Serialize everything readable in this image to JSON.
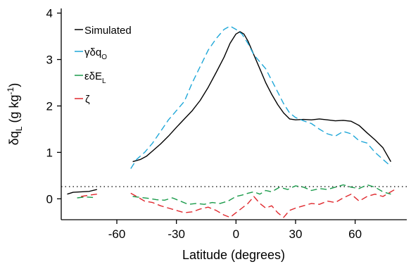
{
  "chart_data": {
    "type": "line",
    "xlabel": "Latitude (degrees)",
    "ylabel_parts": {
      "main": "δq",
      "sub": "L",
      "units_open": " (g kg",
      "units_sup": "-1",
      "units_close": ")"
    },
    "xlim": [
      -88,
      86
    ],
    "ylim": [
      -0.45,
      4.1
    ],
    "x_ticks": [
      -60,
      -30,
      0,
      30,
      60
    ],
    "x_tick_labels": [
      "-60",
      "-30",
      "0",
      "30",
      "60"
    ],
    "y_ticks": [
      0,
      1,
      2,
      3,
      4
    ],
    "y_tick_labels": [
      "0",
      "1",
      "2",
      "3",
      "4"
    ],
    "zero_reference_line": true,
    "grid": false,
    "legend_position": "top-left",
    "legend": [
      {
        "label_main": "Simulated",
        "label_sub": ""
      },
      {
        "label_main": "γδq",
        "label_sub": "O"
      },
      {
        "label_main": "εδE",
        "label_sub": "L"
      },
      {
        "label_main": "ζ",
        "label_sub": ""
      }
    ],
    "series": [
      {
        "name": "Simulated",
        "color": "#000000",
        "dashed": false,
        "segments": [
          [
            [
              -85,
              0.1
            ],
            [
              -82,
              0.14
            ],
            [
              -78,
              0.15
            ],
            [
              -74,
              0.16
            ],
            [
              -70,
              0.2
            ]
          ],
          [
            [
              -52,
              0.8
            ],
            [
              -48,
              0.85
            ],
            [
              -45,
              0.92
            ],
            [
              -42,
              1.03
            ],
            [
              -38,
              1.18
            ],
            [
              -34,
              1.35
            ],
            [
              -30,
              1.54
            ],
            [
              -26,
              1.72
            ],
            [
              -22,
              1.9
            ],
            [
              -18,
              2.12
            ],
            [
              -14,
              2.4
            ],
            [
              -10,
              2.72
            ],
            [
              -6,
              3.05
            ],
            [
              -3,
              3.35
            ],
            [
              0,
              3.55
            ],
            [
              2,
              3.6
            ],
            [
              4,
              3.55
            ],
            [
              6,
              3.4
            ],
            [
              9,
              3.1
            ],
            [
              12,
              2.8
            ],
            [
              15,
              2.5
            ],
            [
              18,
              2.25
            ],
            [
              21,
              2.03
            ],
            [
              24,
              1.85
            ],
            [
              27,
              1.72
            ],
            [
              30,
              1.7
            ],
            [
              34,
              1.71
            ],
            [
              38,
              1.7
            ],
            [
              42,
              1.72
            ],
            [
              46,
              1.7
            ],
            [
              50,
              1.68
            ],
            [
              54,
              1.69
            ],
            [
              58,
              1.67
            ],
            [
              62,
              1.58
            ],
            [
              66,
              1.42
            ],
            [
              70,
              1.27
            ],
            [
              74,
              1.1
            ],
            [
              78,
              0.8
            ]
          ]
        ]
      },
      {
        "name": "γδq_O",
        "color": "#1ea7d8",
        "dashed": true,
        "segments": [
          [
            [
              -53,
              0.65
            ],
            [
              -50,
              0.85
            ],
            [
              -46,
              1.0
            ],
            [
              -42,
              1.2
            ],
            [
              -38,
              1.45
            ],
            [
              -34,
              1.7
            ],
            [
              -30,
              1.9
            ],
            [
              -26,
              2.1
            ],
            [
              -22,
              2.5
            ],
            [
              -18,
              2.85
            ],
            [
              -14,
              3.2
            ],
            [
              -10,
              3.45
            ],
            [
              -6,
              3.65
            ],
            [
              -3,
              3.72
            ],
            [
              0,
              3.65
            ],
            [
              3,
              3.55
            ],
            [
              6,
              3.35
            ],
            [
              9,
              3.1
            ],
            [
              12,
              2.95
            ],
            [
              15,
              2.8
            ],
            [
              18,
              2.55
            ],
            [
              21,
              2.3
            ],
            [
              24,
              2.05
            ],
            [
              27,
              1.85
            ],
            [
              30,
              1.75
            ],
            [
              34,
              1.68
            ],
            [
              38,
              1.62
            ],
            [
              42,
              1.5
            ],
            [
              46,
              1.4
            ],
            [
              50,
              1.35
            ],
            [
              54,
              1.45
            ],
            [
              58,
              1.4
            ],
            [
              62,
              1.25
            ],
            [
              66,
              1.2
            ],
            [
              70,
              1.0
            ],
            [
              74,
              0.85
            ],
            [
              78,
              0.7
            ]
          ]
        ]
      },
      {
        "name": "εδE_L",
        "color": "#1a9b4a",
        "dashed": true,
        "segments": [
          [
            [
              -80,
              0.02
            ],
            [
              -76,
              0.04
            ],
            [
              -72,
              0.03
            ]
          ],
          [
            [
              -52,
              0.05
            ],
            [
              -48,
              0.03
            ],
            [
              -44,
              0.01
            ],
            [
              -40,
              -0.02
            ],
            [
              -36,
              -0.03
            ],
            [
              -32,
              0.02
            ],
            [
              -28,
              -0.05
            ],
            [
              -24,
              -0.12
            ],
            [
              -20,
              -0.1
            ],
            [
              -16,
              -0.12
            ],
            [
              -12,
              -0.08
            ],
            [
              -8,
              -0.1
            ],
            [
              -4,
              -0.05
            ],
            [
              0,
              0.05
            ],
            [
              3,
              0.08
            ],
            [
              6,
              0.12
            ],
            [
              9,
              0.15
            ],
            [
              12,
              0.1
            ],
            [
              15,
              0.18
            ],
            [
              18,
              0.15
            ],
            [
              22,
              0.25
            ],
            [
              26,
              0.2
            ],
            [
              30,
              0.28
            ],
            [
              34,
              0.25
            ],
            [
              38,
              0.18
            ],
            [
              42,
              0.22
            ],
            [
              46,
              0.2
            ],
            [
              50,
              0.25
            ],
            [
              54,
              0.3
            ],
            [
              58,
              0.25
            ],
            [
              62,
              0.22
            ],
            [
              66,
              0.3
            ],
            [
              70,
              0.25
            ],
            [
              74,
              0.15
            ],
            [
              78,
              0.1
            ]
          ]
        ]
      },
      {
        "name": "ζ",
        "color": "#e0292e",
        "dashed": true,
        "segments": [
          [
            [
              -78,
              0.05
            ],
            [
              -74,
              0.08
            ],
            [
              -70,
              0.1
            ]
          ],
          [
            [
              -53,
              0.12
            ],
            [
              -50,
              0.05
            ],
            [
              -46,
              -0.05
            ],
            [
              -42,
              -0.08
            ],
            [
              -38,
              -0.15
            ],
            [
              -34,
              -0.2
            ],
            [
              -30,
              -0.25
            ],
            [
              -26,
              -0.3
            ],
            [
              -22,
              -0.28
            ],
            [
              -18,
              -0.22
            ],
            [
              -14,
              -0.18
            ],
            [
              -10,
              -0.25
            ],
            [
              -6,
              -0.35
            ],
            [
              -3,
              -0.4
            ],
            [
              0,
              -0.3
            ],
            [
              3,
              -0.2
            ],
            [
              6,
              -0.1
            ],
            [
              9,
              0.05
            ],
            [
              12,
              -0.1
            ],
            [
              15,
              -0.2
            ],
            [
              18,
              -0.15
            ],
            [
              21,
              -0.3
            ],
            [
              24,
              -0.4
            ],
            [
              27,
              -0.25
            ],
            [
              30,
              -0.2
            ],
            [
              34,
              -0.15
            ],
            [
              38,
              -0.1
            ],
            [
              42,
              -0.12
            ],
            [
              46,
              -0.05
            ],
            [
              50,
              -0.08
            ],
            [
              54,
              0.02
            ],
            [
              58,
              0.1
            ],
            [
              62,
              -0.05
            ],
            [
              66,
              0.05
            ],
            [
              70,
              0.1
            ],
            [
              74,
              0.05
            ],
            [
              78,
              0.15
            ],
            [
              80,
              0.2
            ]
          ]
        ]
      }
    ]
  }
}
